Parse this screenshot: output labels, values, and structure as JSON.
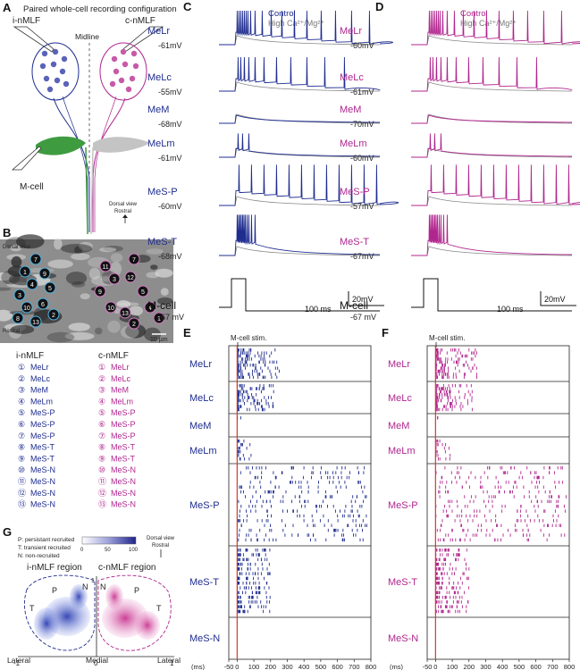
{
  "panel_a": {
    "letter": "A",
    "title": "Paired whole-cell recording configuration",
    "i_label": "i-nMLF",
    "c_label": "c-nMLF",
    "midline": "Midline",
    "mcell": "M-cell",
    "view": "Dorsal view",
    "rostral": "Rostral"
  },
  "panel_b": {
    "letter": "B",
    "view": "Dorsal view",
    "rostral": "Rostral",
    "scale": "10 µm",
    "i_header": "i-nMLF",
    "c_header": "c-nMLF",
    "legend": [
      {
        "num": "①",
        "name": "MeLr"
      },
      {
        "num": "②",
        "name": "MeLc"
      },
      {
        "num": "③",
        "name": "MeM"
      },
      {
        "num": "④",
        "name": "MeLm"
      },
      {
        "num": "⑤",
        "name": "MeS-P"
      },
      {
        "num": "⑥",
        "name": "MeS-P"
      },
      {
        "num": "⑦",
        "name": "MeS-P"
      },
      {
        "num": "⑧",
        "name": "MeS-T"
      },
      {
        "num": "⑨",
        "name": "MeS-T"
      },
      {
        "num": "⑩",
        "name": "MeS-N"
      },
      {
        "num": "⑪",
        "name": "MeS-N"
      },
      {
        "num": "⑫",
        "name": "MeS-N"
      },
      {
        "num": "⑬",
        "name": "MeS-N"
      }
    ],
    "image_numbers_left": [
      "7",
      "1",
      "9",
      "4",
      "5",
      "3",
      "10",
      "6",
      "2",
      "8",
      "13"
    ],
    "image_numbers_right": [
      "7",
      "11",
      "3",
      "12",
      "9",
      "5",
      "10",
      "13",
      "2",
      "4",
      "1"
    ]
  },
  "panel_c": {
    "letter": "C",
    "legend_control": "Control",
    "legend_high": "High Ca²⁺/Mg²⁺",
    "traces": [
      {
        "name": "MeLr",
        "vm": "-61mV"
      },
      {
        "name": "MeLc",
        "vm": "-55mV"
      },
      {
        "name": "MeM",
        "vm": "-68mV"
      },
      {
        "name": "MeLm",
        "vm": "-61mV"
      },
      {
        "name": "MeS-P",
        "vm": "-60mV"
      },
      {
        "name": "MeS-T",
        "vm": "-68mV"
      }
    ],
    "mcell": "M-cell",
    "mcell_vm": "-67 mV",
    "scale_v": "20mV",
    "scale_t": "100 ms"
  },
  "panel_d": {
    "letter": "D",
    "legend_control": "Control",
    "legend_high": "High Ca²⁺/Mg²⁺",
    "traces": [
      {
        "name": "MeLr",
        "vm": "-60mV"
      },
      {
        "name": "MeLc",
        "vm": "-61mV"
      },
      {
        "name": "MeM",
        "vm": "-70mV"
      },
      {
        "name": "MeLm",
        "vm": "-60mV"
      },
      {
        "name": "MeS-P",
        "vm": "-57mV"
      },
      {
        "name": "MeS-T",
        "vm": "-67mV"
      }
    ],
    "mcell": "M-cell",
    "mcell_vm": "-67 mV",
    "scale_v": "20mV",
    "scale_t": "100 ms"
  },
  "panel_e": {
    "letter": "E",
    "stim": "M-cell stim.",
    "rows": [
      "MeLr",
      "MeLc",
      "MeM",
      "MeLm",
      "MeS-P",
      "MeS-T",
      "MeS-N"
    ],
    "xticks": [
      "-50",
      "0",
      "100",
      "200",
      "300",
      "400",
      "500",
      "600",
      "700",
      "800"
    ],
    "xunit": "(ms)"
  },
  "panel_f": {
    "letter": "F",
    "stim": "M-cell stim.",
    "rows": [
      "MeLr",
      "MeLc",
      "MeM",
      "MeLm",
      "MeS-P",
      "MeS-T",
      "MeS-N"
    ],
    "xticks": [
      "-50",
      "0",
      "100",
      "200",
      "300",
      "400",
      "500",
      "600",
      "700",
      "800"
    ],
    "xunit": "(ms)"
  },
  "panel_g": {
    "letter": "G",
    "key_p": "P: persistant recruited",
    "key_t": "T: transient recruited",
    "key_n": "N: non-recruited",
    "colorbar_ticks": [
      "0",
      "50",
      "100"
    ],
    "view": "Dorsal view",
    "rostral": "Rostral",
    "i_region": "i-nMLF region",
    "c_region": "c-nMLF region",
    "labels": [
      "T",
      "P",
      "N",
      "N",
      "P",
      "T"
    ],
    "y_top": "1",
    "x_left": "-1",
    "x_mid": "0",
    "x_right": "1",
    "lateral_l": "Lateral",
    "medial": "Medial",
    "lateral_r": "Lateral"
  },
  "colors": {
    "control_i": "#1f2d8f",
    "control_c": "#b0268e",
    "high": "#7a7a7a",
    "stim": "#d23a2a"
  }
}
